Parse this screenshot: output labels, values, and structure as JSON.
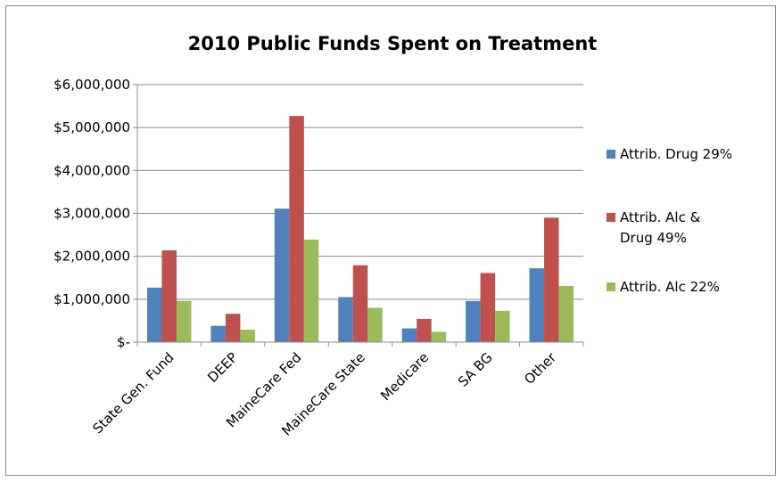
{
  "chart_data": {
    "type": "bar",
    "title": "2010 Public Funds Spent on Treatment",
    "xlabel": "",
    "ylabel": "",
    "categories": [
      "State Gen. Fund",
      "DEEP",
      "MaineCare Fed",
      "MaineCare State",
      "Medicare",
      "SA BG",
      "Other"
    ],
    "series": [
      {
        "name": "Attrib. Drug 29%",
        "color": "#4f81bd",
        "values": [
          1270000,
          380000,
          3110000,
          1050000,
          320000,
          960000,
          1720000
        ]
      },
      {
        "name": "Attrib. Alc & Drug 49%",
        "color": "#c0504d",
        "values": [
          2140000,
          660000,
          5270000,
          1790000,
          540000,
          1610000,
          2900000
        ]
      },
      {
        "name": "Attrib. Alc 22%",
        "color": "#9bbb59",
        "values": [
          960000,
          290000,
          2390000,
          800000,
          240000,
          730000,
          1310000
        ]
      }
    ],
    "ylim": [
      0,
      6000000
    ],
    "yticks": [
      {
        "value": 0,
        "label": "$-"
      },
      {
        "value": 1000000,
        "label": "$1,000,000"
      },
      {
        "value": 2000000,
        "label": "$2,000,000"
      },
      {
        "value": 3000000,
        "label": "$3,000,000"
      },
      {
        "value": 4000000,
        "label": "$4,000,000"
      },
      {
        "value": 5000000,
        "label": "$5,000,000"
      },
      {
        "value": 6000000,
        "label": "$6,000,000"
      }
    ],
    "grid": true,
    "legend_position": "right",
    "legend_lines": [
      [
        "Attrib. Drug 29%"
      ],
      [
        "Attrib. Alc &",
        "Drug 49%"
      ],
      [
        "Attrib. Alc 22%"
      ]
    ]
  }
}
